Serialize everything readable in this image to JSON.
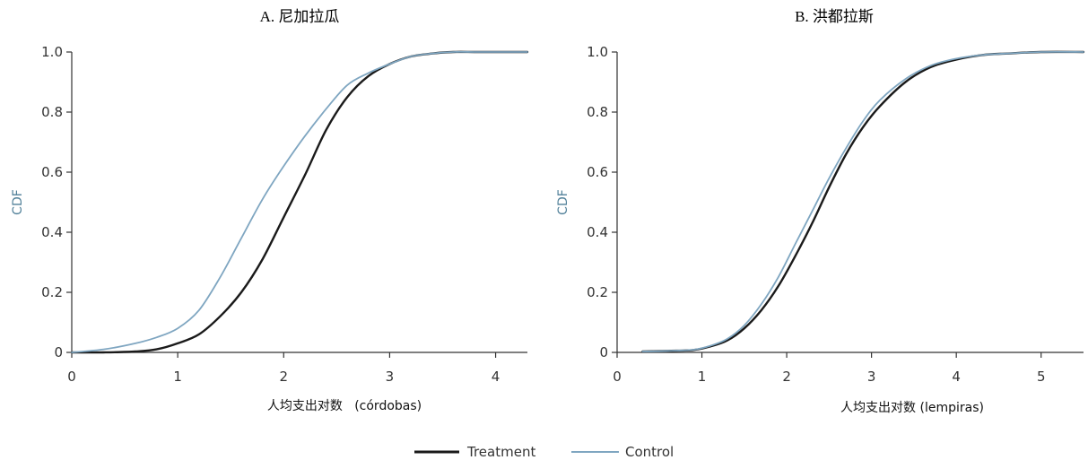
{
  "chart_data": [
    {
      "type": "line",
      "title": "A. 尼加拉瓜",
      "xlabel": "人均支出对数   (córdobas)",
      "ylabel": "CDF",
      "xlim": [
        0,
        4.3
      ],
      "ylim": [
        0,
        1.0
      ],
      "x_ticks": [
        "0",
        "1",
        "2",
        "3",
        "4"
      ],
      "y_ticks": [
        "0",
        "0.2",
        "0.4",
        "0.6",
        "0.8",
        "1.0"
      ],
      "grid": false,
      "series": [
        {
          "name": "Treatment",
          "color": "#1a1a1a",
          "x": [
            0,
            0.3,
            0.6,
            0.8,
            1.0,
            1.2,
            1.4,
            1.6,
            1.8,
            2.0,
            2.2,
            2.4,
            2.6,
            2.8,
            3.0,
            3.2,
            3.4,
            3.6,
            3.8,
            4.0,
            4.3
          ],
          "y": [
            0.0,
            0.0,
            0.003,
            0.01,
            0.03,
            0.06,
            0.12,
            0.2,
            0.31,
            0.45,
            0.59,
            0.74,
            0.85,
            0.92,
            0.96,
            0.985,
            0.995,
            1.0,
            1.0,
            1.0,
            1.0
          ]
        },
        {
          "name": "Control",
          "color": "#7fa6c1",
          "x": [
            0,
            0.3,
            0.6,
            0.8,
            1.0,
            1.2,
            1.4,
            1.6,
            1.8,
            2.0,
            2.2,
            2.4,
            2.6,
            2.8,
            3.0,
            3.2,
            3.4,
            3.6,
            3.8,
            4.0,
            4.3
          ],
          "y": [
            0.0,
            0.01,
            0.03,
            0.05,
            0.08,
            0.14,
            0.25,
            0.38,
            0.51,
            0.62,
            0.72,
            0.81,
            0.89,
            0.93,
            0.96,
            0.985,
            0.995,
            1.0,
            1.0,
            1.0,
            1.0
          ]
        }
      ]
    },
    {
      "type": "line",
      "title": "B. 洪都拉斯",
      "xlabel": "人均支出对数 (lempiras)",
      "ylabel": "CDF",
      "xlim": [
        0,
        5.5
      ],
      "ylim": [
        0,
        1.0
      ],
      "x_ticks": [
        "0",
        "1",
        "2",
        "3",
        "4",
        "5"
      ],
      "y_ticks": [
        "0",
        "0.2",
        "0.4",
        "0.6",
        "0.8",
        "1.0"
      ],
      "grid": false,
      "series": [
        {
          "name": "Treatment",
          "color": "#1a1a1a",
          "x": [
            0.3,
            0.6,
            0.9,
            1.1,
            1.3,
            1.5,
            1.7,
            1.9,
            2.1,
            2.3,
            2.5,
            2.7,
            2.9,
            3.1,
            3.4,
            3.7,
            4.0,
            4.3,
            4.6,
            5.0,
            5.5
          ],
          "y": [
            0.003,
            0.005,
            0.008,
            0.02,
            0.04,
            0.08,
            0.14,
            0.22,
            0.32,
            0.43,
            0.55,
            0.66,
            0.75,
            0.82,
            0.9,
            0.95,
            0.975,
            0.99,
            0.995,
            1.0,
            1.0
          ]
        },
        {
          "name": "Control",
          "color": "#7fa6c1",
          "x": [
            0.3,
            0.6,
            0.9,
            1.1,
            1.3,
            1.5,
            1.7,
            1.9,
            2.1,
            2.3,
            2.5,
            2.7,
            2.9,
            3.1,
            3.4,
            3.7,
            4.0,
            4.3,
            4.6,
            5.0,
            5.5
          ],
          "y": [
            0.003,
            0.005,
            0.009,
            0.022,
            0.045,
            0.09,
            0.16,
            0.25,
            0.36,
            0.47,
            0.58,
            0.68,
            0.77,
            0.84,
            0.91,
            0.955,
            0.978,
            0.99,
            0.995,
            1.0,
            1.0
          ]
        }
      ]
    }
  ],
  "legend": {
    "position": "bottom-center",
    "items": [
      {
        "label": "Treatment",
        "color": "#1a1a1a"
      },
      {
        "label": "Control",
        "color": "#7fa6c1"
      }
    ]
  }
}
